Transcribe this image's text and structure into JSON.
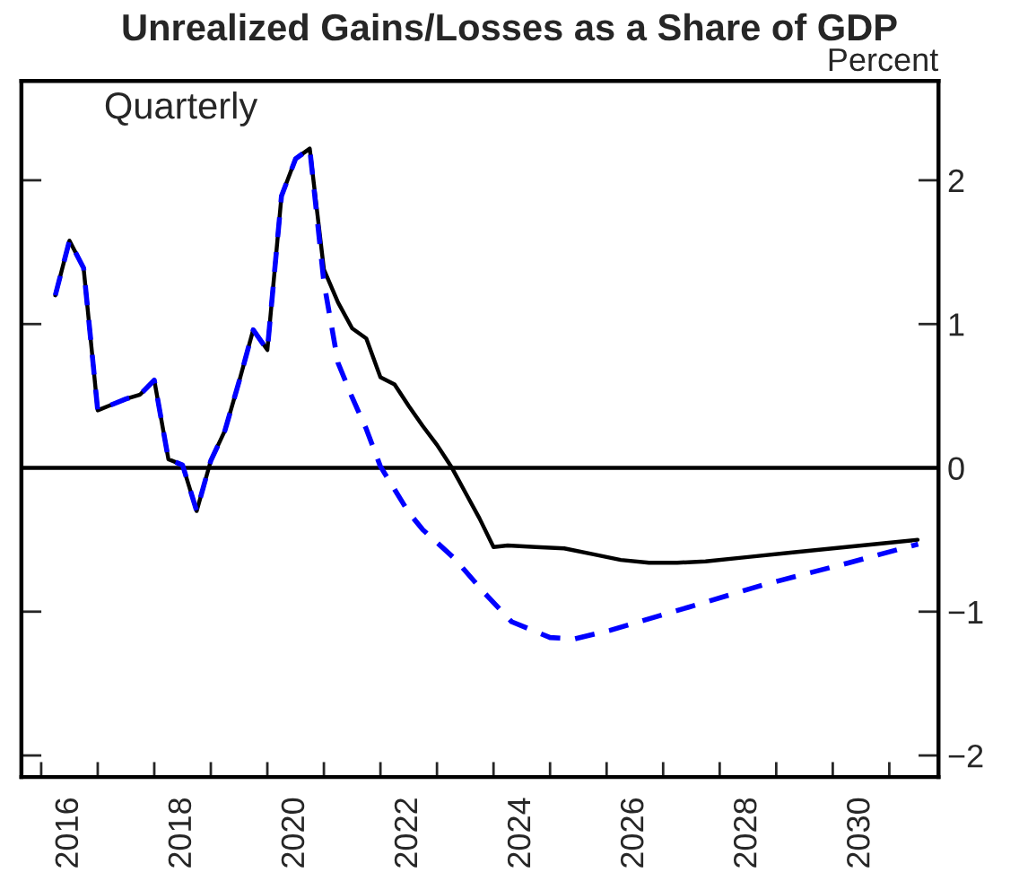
{
  "chart_data": {
    "type": "line",
    "title": "Unrealized Gains/Losses as a Share of GDP",
    "ylabel": "Percent",
    "annotations": [
      "Quarterly"
    ],
    "series": [
      {
        "color": "#000000",
        "line_style": "solid",
        "x": [
          2016.25,
          2016.5,
          2016.75,
          2017.0,
          2017.25,
          2017.5,
          2017.75,
          2018.0,
          2018.25,
          2018.5,
          2018.75,
          2019.0,
          2019.25,
          2019.5,
          2019.75,
          2020.0,
          2020.25,
          2020.5,
          2020.75,
          2021.0,
          2021.25,
          2021.5,
          2021.75,
          2022.0,
          2022.25,
          2022.5,
          2022.75,
          2023.0,
          2023.25,
          2023.5,
          2023.75,
          2024.0,
          2024.25,
          2024.75,
          2025.25,
          2025.75,
          2026.25,
          2026.75,
          2027.25,
          2027.75,
          2028.5,
          2029.25,
          2030.0,
          2030.75,
          2031.5
        ],
        "values": [
          1.2,
          1.58,
          1.39,
          0.4,
          0.44,
          0.48,
          0.51,
          0.61,
          0.06,
          0.02,
          -0.3,
          0.05,
          0.26,
          0.6,
          0.96,
          0.82,
          1.89,
          2.15,
          2.22,
          1.38,
          1.15,
          0.97,
          0.9,
          0.63,
          0.58,
          0.43,
          0.29,
          0.16,
          0.01,
          -0.17,
          -0.35,
          -0.55,
          -0.54,
          -0.55,
          -0.56,
          -0.6,
          -0.64,
          -0.66,
          -0.66,
          -0.65,
          -0.62,
          -0.59,
          -0.56,
          -0.53,
          -0.5
        ]
      },
      {
        "color": "#0000ff",
        "line_style": "dashed",
        "x": [
          2016.25,
          2016.5,
          2016.75,
          2017.0,
          2017.25,
          2017.5,
          2017.75,
          2018.0,
          2018.25,
          2018.5,
          2018.75,
          2019.0,
          2019.25,
          2019.5,
          2019.75,
          2020.0,
          2020.25,
          2020.5,
          2020.75,
          2021.0,
          2021.25,
          2021.5,
          2021.75,
          2022.0,
          2022.25,
          2022.5,
          2022.75,
          2023.31,
          2023.84,
          2024.32,
          2025.0,
          2025.43,
          2026.06,
          2027.44,
          2028.8,
          2030.29,
          2031.51
        ],
        "values": [
          1.2,
          1.58,
          1.39,
          0.4,
          0.44,
          0.48,
          0.51,
          0.61,
          0.06,
          0.02,
          -0.3,
          0.05,
          0.26,
          0.6,
          0.96,
          0.82,
          1.89,
          2.15,
          2.22,
          1.29,
          0.73,
          0.49,
          0.27,
          0.01,
          -0.15,
          -0.31,
          -0.43,
          -0.63,
          -0.87,
          -1.07,
          -1.18,
          -1.19,
          -1.13,
          -0.97,
          -0.81,
          -0.66,
          -0.53
        ]
      }
    ],
    "ref_lines": [
      {
        "axis": "y",
        "value": 0,
        "color": "#000000",
        "line_style": "solid"
      }
    ],
    "xlim": [
      2015.65,
      2031.87
    ],
    "xticks": [
      {
        "value": 2016,
        "label": null
      },
      {
        "value": 2016.5,
        "label": "2016"
      },
      {
        "value": 2017,
        "label": null
      },
      {
        "value": 2018,
        "label": null
      },
      {
        "value": 2018.5,
        "label": "2018"
      },
      {
        "value": 2019,
        "label": null
      },
      {
        "value": 2020,
        "label": null
      },
      {
        "value": 2020.5,
        "label": "2020"
      },
      {
        "value": 2021,
        "label": null
      },
      {
        "value": 2022,
        "label": null
      },
      {
        "value": 2022.5,
        "label": "2022"
      },
      {
        "value": 2023,
        "label": null
      },
      {
        "value": 2024,
        "label": null
      },
      {
        "value": 2024.5,
        "label": "2024"
      },
      {
        "value": 2025,
        "label": null
      },
      {
        "value": 2026,
        "label": null
      },
      {
        "value": 2026.5,
        "label": "2026"
      },
      {
        "value": 2027,
        "label": null
      },
      {
        "value": 2028,
        "label": null
      },
      {
        "value": 2028.5,
        "label": "2028"
      },
      {
        "value": 2029,
        "label": null
      },
      {
        "value": 2030,
        "label": null
      },
      {
        "value": 2030.5,
        "label": "2030"
      },
      {
        "value": 2031,
        "label": null
      }
    ],
    "ylim": [
      -2.15,
      2.69
    ],
    "yticks": [
      {
        "value": -2,
        "label": "−2"
      },
      {
        "value": -1,
        "label": "−1"
      },
      0,
      1,
      2
    ],
    "grid": false,
    "legend": false
  }
}
